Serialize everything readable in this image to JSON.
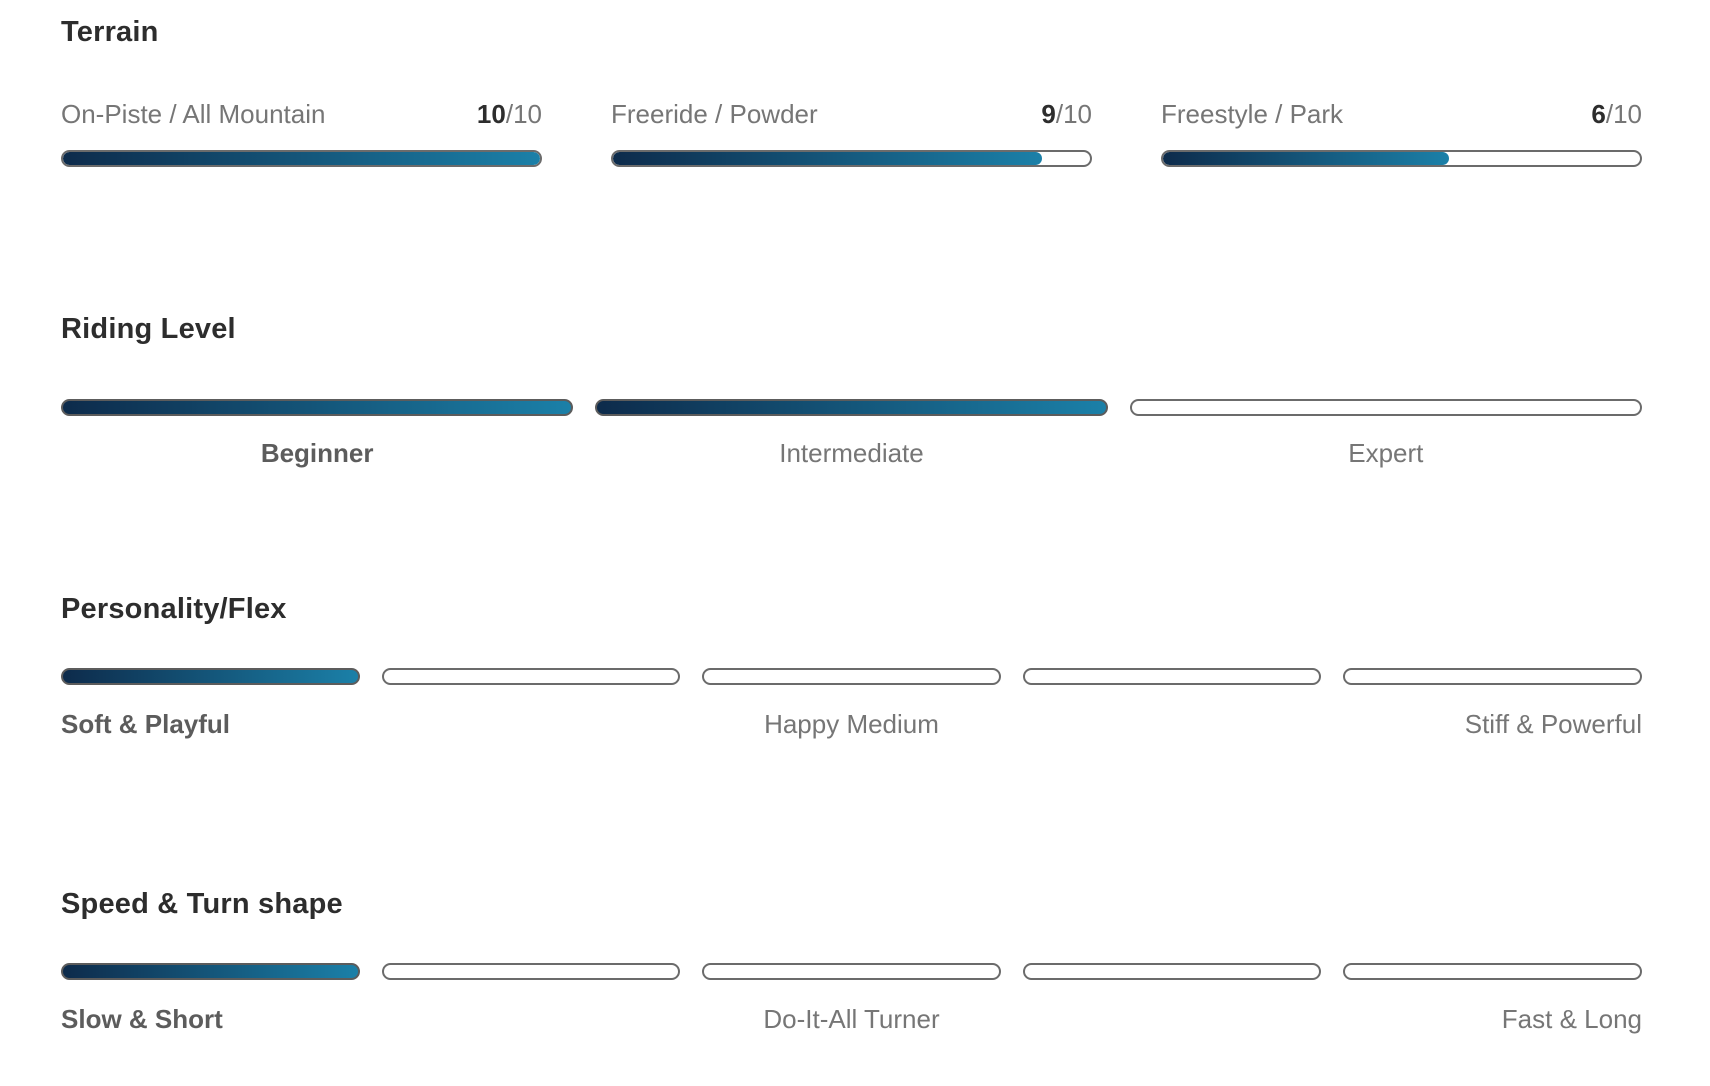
{
  "colors": {
    "bar-gradient-start": "#0d2b4b",
    "bar-gradient-end": "#1b80a8",
    "track-border": "#6b6b6b",
    "heading-text": "#2d2d2d",
    "label-text": "#767676",
    "active-label-text": "#5c5c5c"
  },
  "terrain": {
    "title": "Terrain",
    "metrics": [
      {
        "label": "On-Piste / All Mountain",
        "value": "10",
        "max_label": "/10",
        "fill_percent": 100
      },
      {
        "label": "Freeride / Powder",
        "value": "9",
        "max_label": "/10",
        "fill_percent": 90
      },
      {
        "label": "Freestyle / Park",
        "value": "6",
        "max_label": "/10",
        "fill_percent": 60
      }
    ]
  },
  "riding_level": {
    "title": "Riding Level",
    "segments_filled": [
      true,
      true,
      false
    ],
    "labels": [
      {
        "text": "Beginner",
        "active": true
      },
      {
        "text": "Intermediate",
        "active": false
      },
      {
        "text": "Expert",
        "active": false
      }
    ]
  },
  "personality_flex": {
    "title": "Personality/Flex",
    "segments_filled": [
      true,
      false,
      false,
      false,
      false
    ],
    "labels": [
      {
        "text": "Soft & Playful",
        "active": true
      },
      {
        "text": "Happy Medium",
        "active": false
      },
      {
        "text": "Stiff & Powerful",
        "active": false
      }
    ]
  },
  "speed_turn_shape": {
    "title": "Speed & Turn shape",
    "segments_filled": [
      true,
      false,
      false,
      false,
      false
    ],
    "labels": [
      {
        "text": "Slow & Short",
        "active": true
      },
      {
        "text": "Do-It-All Turner",
        "active": false
      },
      {
        "text": "Fast & Long",
        "active": false
      }
    ]
  }
}
